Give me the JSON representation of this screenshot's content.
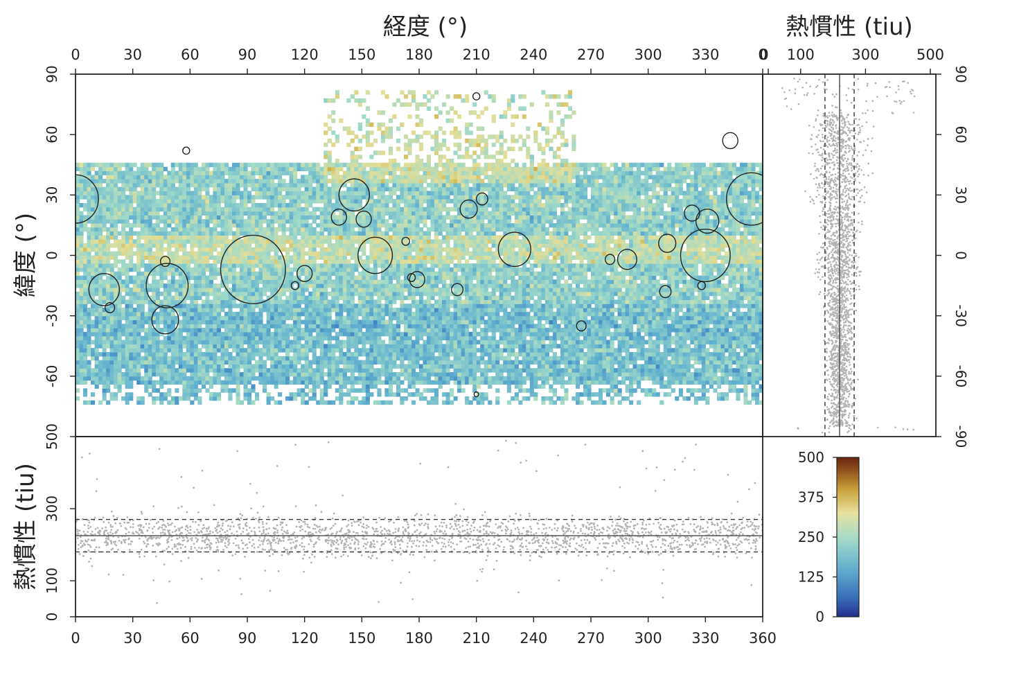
{
  "chart_data": [
    {
      "panel": "map",
      "type": "heatmap",
      "xlabel": "経度 (°)",
      "ylabel": "緯度 (°)",
      "x_ticks": [
        "0",
        "30",
        "60",
        "90",
        "120",
        "150",
        "180",
        "210",
        "240",
        "270",
        "300",
        "330",
        "0"
      ],
      "y_ticks": [
        "90",
        "60",
        "30",
        "0",
        "-30",
        "-60"
      ],
      "xlim": [
        0,
        360
      ],
      "ylim": [
        -90,
        90
      ],
      "color_scale": {
        "min": 0,
        "max": 500,
        "colors": [
          "#2b3a8f",
          "#3a7cc2",
          "#63b2cf",
          "#9ed9c9",
          "#e3df99",
          "#c9a93b",
          "#8c4f1c",
          "#6b2410"
        ]
      },
      "regions": [
        {
          "lon": [
            0,
            360
          ],
          "lat": [
            -75,
            -25
          ],
          "value": 170
        },
        {
          "lon": [
            0,
            360
          ],
          "lat": [
            -25,
            -5
          ],
          "value": 200
        },
        {
          "lon": [
            0,
            360
          ],
          "lat": [
            -5,
            10
          ],
          "value": 250
        },
        {
          "lon": [
            0,
            360
          ],
          "lat": [
            10,
            45
          ],
          "value": 200
        },
        {
          "lon": [
            130,
            260
          ],
          "lat": [
            35,
            80
          ],
          "value": 260
        }
      ],
      "craters": [
        {
          "lon": 93,
          "lat": -7,
          "r": 17
        },
        {
          "lon": 48,
          "lat": -15,
          "r": 11
        },
        {
          "lon": 15,
          "lat": -17,
          "r": 8
        },
        {
          "lon": 47,
          "lat": -32,
          "r": 7
        },
        {
          "lon": 18,
          "lat": -26,
          "r": 2.5
        },
        {
          "lon": 47,
          "lat": -3,
          "r": 2.5
        },
        {
          "lon": 115,
          "lat": -15,
          "r": 2
        },
        {
          "lon": 120,
          "lat": -9,
          "r": 4
        },
        {
          "lon": 146,
          "lat": 30,
          "r": 8
        },
        {
          "lon": 138,
          "lat": 19,
          "r": 4
        },
        {
          "lon": 151,
          "lat": 18,
          "r": 4
        },
        {
          "lon": 157,
          "lat": 0,
          "r": 9
        },
        {
          "lon": 173,
          "lat": 7,
          "r": 2
        },
        {
          "lon": 179,
          "lat": -12,
          "r": 4
        },
        {
          "lon": 176,
          "lat": -11,
          "r": 2
        },
        {
          "lon": 200,
          "lat": -17,
          "r": 3
        },
        {
          "lon": 206,
          "lat": 23,
          "r": 4.5
        },
        {
          "lon": 213,
          "lat": 28,
          "r": 3
        },
        {
          "lon": 230,
          "lat": 3,
          "r": 8.5
        },
        {
          "lon": 265,
          "lat": -35,
          "r": 2.5
        },
        {
          "lon": 280,
          "lat": -2,
          "r": 2.5
        },
        {
          "lon": 289,
          "lat": -2,
          "r": 5
        },
        {
          "lon": 309,
          "lat": -18,
          "r": 3
        },
        {
          "lon": 310,
          "lat": 6,
          "r": 4.5
        },
        {
          "lon": 323,
          "lat": 21,
          "r": 4
        },
        {
          "lon": 331,
          "lat": 17,
          "r": 6
        },
        {
          "lon": 330,
          "lat": 0,
          "r": 13
        },
        {
          "lon": 354,
          "lat": 28,
          "r": 13
        },
        {
          "lon": 0,
          "lat": 28,
          "r": 12
        },
        {
          "lon": 343,
          "lat": 57,
          "r": 4
        },
        {
          "lon": 58,
          "lat": 52,
          "r": 1.8
        },
        {
          "lon": 210,
          "lat": 79,
          "r": 1.8
        },
        {
          "lon": 210,
          "lat": -69,
          "r": 1.2
        },
        {
          "lon": 328,
          "lat": -15,
          "r": 2
        }
      ]
    },
    {
      "panel": "latitude-profile",
      "type": "scatter",
      "xlabel": "熱慣性 (tiu)",
      "x_ticks": [
        "0",
        "100",
        "300",
        "500"
      ],
      "y_ticks": [
        "90",
        "60",
        "30",
        "0",
        "-30",
        "-60",
        "-90"
      ],
      "xlim": [
        0,
        500
      ],
      "ylim": [
        -90,
        90
      ],
      "mean": 220,
      "band": [
        175,
        265
      ]
    },
    {
      "panel": "longitude-profile",
      "type": "scatter",
      "ylabel": "熱慣性 (tiu)",
      "x_ticks": [
        "0",
        "30",
        "60",
        "90",
        "120",
        "150",
        "180",
        "210",
        "240",
        "270",
        "300",
        "330",
        "360"
      ],
      "y_ticks": [
        "0",
        "100",
        "300",
        "500"
      ],
      "xlim": [
        0,
        360
      ],
      "ylim": [
        0,
        500
      ],
      "mean": 225,
      "band": [
        180,
        270
      ]
    },
    {
      "panel": "colorbar",
      "type": "heatmap",
      "ticks": [
        "500",
        "375",
        "250",
        "125",
        "0"
      ],
      "range": [
        0,
        500
      ]
    }
  ],
  "labels": {
    "lon_title": "経度 (°)",
    "lat_title": "緯度 (°)",
    "ti_title_top": "熱慣性 (tiu)",
    "ti_title_left": "熱慣性 (tiu)"
  }
}
